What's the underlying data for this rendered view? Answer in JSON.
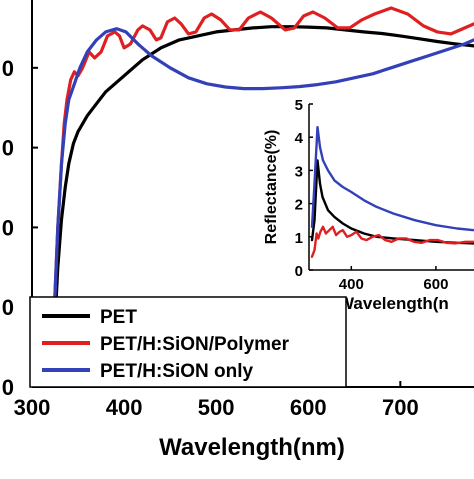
{
  "chart_data": [
    {
      "id": "main",
      "type": "line",
      "xlabel": "Wavelength(nm)",
      "ylabel": "",
      "xlim": [
        300,
        780
      ],
      "ylim": [
        0,
        97
      ],
      "x_ticks": [
        300,
        400,
        500,
        600,
        700
      ],
      "y_ticks": [
        0,
        20,
        40,
        60,
        80,
        100
      ],
      "y_tick_labels": [
        "0",
        "0",
        "0",
        "0",
        "0",
        "0"
      ],
      "legend": {
        "position": "bottom-left"
      },
      "series": [
        {
          "name": "PET",
          "color": "#000000",
          "points": [
            [
              320,
              0
            ],
            [
              324,
              12
            ],
            [
              328,
              30
            ],
            [
              332,
              42
            ],
            [
              336,
              50
            ],
            [
              340,
              56
            ],
            [
              345,
              61
            ],
            [
              350,
              64
            ],
            [
              360,
              68
            ],
            [
              370,
              71
            ],
            [
              380,
              74
            ],
            [
              390,
              76
            ],
            [
              400,
              78
            ],
            [
              420,
              82
            ],
            [
              440,
              85
            ],
            [
              460,
              87
            ],
            [
              480,
              88
            ],
            [
              500,
              89
            ],
            [
              520,
              89.5
            ],
            [
              540,
              90
            ],
            [
              560,
              90.3
            ],
            [
              580,
              90.3
            ],
            [
              600,
              90.2
            ],
            [
              620,
              90
            ],
            [
              640,
              89.5
            ],
            [
              660,
              89
            ],
            [
              680,
              88.6
            ],
            [
              700,
              88
            ],
            [
              720,
              87.3
            ],
            [
              740,
              86.6
            ],
            [
              760,
              86
            ],
            [
              780,
              85.5
            ]
          ]
        },
        {
          "name": "PET/H:SiON/Polymer",
          "color": "#e02020",
          "points": [
            [
              320,
              0
            ],
            [
              324,
              18
            ],
            [
              328,
              40
            ],
            [
              332,
              56
            ],
            [
              335,
              66
            ],
            [
              338,
              72
            ],
            [
              342,
              77
            ],
            [
              346,
              79
            ],
            [
              350,
              78
            ],
            [
              355,
              80
            ],
            [
              362,
              84
            ],
            [
              368,
              82.5
            ],
            [
              375,
              84
            ],
            [
              382,
              88
            ],
            [
              390,
              89
            ],
            [
              395,
              88
            ],
            [
              400,
              85
            ],
            [
              407,
              86
            ],
            [
              415,
              89.5
            ],
            [
              420,
              90.5
            ],
            [
              428,
              89.5
            ],
            [
              435,
              87
            ],
            [
              440,
              87.5
            ],
            [
              447,
              91.5
            ],
            [
              455,
              92.5
            ],
            [
              462,
              91
            ],
            [
              470,
              88.5
            ],
            [
              478,
              89
            ],
            [
              487,
              92.5
            ],
            [
              495,
              93.5
            ],
            [
              505,
              92
            ],
            [
              515,
              89.5
            ],
            [
              525,
              89.5
            ],
            [
              535,
              92.5
            ],
            [
              548,
              94
            ],
            [
              560,
              92.5
            ],
            [
              575,
              89.5
            ],
            [
              585,
              90
            ],
            [
              595,
              93
            ],
            [
              605,
              94
            ],
            [
              618,
              92.5
            ],
            [
              632,
              90
            ],
            [
              645,
              90
            ],
            [
              658,
              92
            ],
            [
              672,
              93.5
            ],
            [
              690,
              95
            ],
            [
              708,
              93.5
            ],
            [
              725,
              90.5
            ],
            [
              740,
              89
            ],
            [
              755,
              88.5
            ],
            [
              770,
              90
            ],
            [
              780,
              91
            ]
          ]
        },
        {
          "name": "PET/H:SiON only",
          "color": "#3340b8",
          "points": [
            [
              320,
              0
            ],
            [
              324,
              18
            ],
            [
              328,
              40
            ],
            [
              332,
              56
            ],
            [
              336,
              66
            ],
            [
              340,
              72
            ],
            [
              346,
              76
            ],
            [
              352,
              80
            ],
            [
              360,
              84
            ],
            [
              370,
              87
            ],
            [
              380,
              89
            ],
            [
              392,
              89.8
            ],
            [
              402,
              89
            ],
            [
              415,
              86
            ],
            [
              430,
              83
            ],
            [
              450,
              80
            ],
            [
              470,
              77.5
            ],
            [
              490,
              76
            ],
            [
              510,
              75.2
            ],
            [
              530,
              74.8
            ],
            [
              550,
              74.8
            ],
            [
              570,
              75
            ],
            [
              590,
              75.3
            ],
            [
              610,
              75.8
            ],
            [
              630,
              76.5
            ],
            [
              650,
              77.5
            ],
            [
              670,
              78.5
            ],
            [
              690,
              80
            ],
            [
              710,
              81.5
            ],
            [
              730,
              83
            ],
            [
              750,
              84.5
            ],
            [
              770,
              86
            ],
            [
              780,
              87
            ]
          ]
        }
      ]
    },
    {
      "id": "inset",
      "type": "line",
      "xlabel": "Wavelength(n",
      "ylabel": "Reflectance(%)",
      "xlim": [
        300,
        690
      ],
      "ylim": [
        0,
        5
      ],
      "x_ticks": [
        400,
        600
      ],
      "y_ticks": [
        0,
        1,
        2,
        3,
        4,
        5
      ],
      "series": [
        {
          "color": "#000000",
          "points": [
            [
              307,
              0.9
            ],
            [
              313,
              1.5
            ],
            [
              320,
              3.3
            ],
            [
              326,
              2.6
            ],
            [
              332,
              2.2
            ],
            [
              345,
              1.8
            ],
            [
              360,
              1.6
            ],
            [
              380,
              1.4
            ],
            [
              400,
              1.25
            ],
            [
              430,
              1.1
            ],
            [
              460,
              1.0
            ],
            [
              500,
              0.95
            ],
            [
              550,
              0.9
            ],
            [
              600,
              0.85
            ],
            [
              650,
              0.82
            ],
            [
              690,
              0.8
            ]
          ]
        },
        {
          "color": "#e02020",
          "points": [
            [
              307,
              0.4
            ],
            [
              313,
              0.6
            ],
            [
              318,
              1.1
            ],
            [
              322,
              0.95
            ],
            [
              327,
              1.15
            ],
            [
              333,
              1.3
            ],
            [
              340,
              1.1
            ],
            [
              348,
              1.2
            ],
            [
              356,
              1.3
            ],
            [
              364,
              1.05
            ],
            [
              372,
              1.15
            ],
            [
              380,
              1.2
            ],
            [
              390,
              1.0
            ],
            [
              400,
              1.05
            ],
            [
              412,
              1.15
            ],
            [
              424,
              0.95
            ],
            [
              436,
              0.9
            ],
            [
              450,
              1.0
            ],
            [
              465,
              1.05
            ],
            [
              480,
              0.9
            ],
            [
              495,
              0.85
            ],
            [
              512,
              0.95
            ],
            [
              530,
              0.95
            ],
            [
              548,
              0.85
            ],
            [
              566,
              0.82
            ],
            [
              585,
              0.9
            ],
            [
              605,
              0.9
            ],
            [
              625,
              0.82
            ],
            [
              645,
              0.8
            ],
            [
              670,
              0.85
            ],
            [
              690,
              0.85
            ]
          ]
        },
        {
          "color": "#3340b8",
          "points": [
            [
              307,
              1.3
            ],
            [
              313,
              2.6
            ],
            [
              320,
              4.3
            ],
            [
              326,
              3.7
            ],
            [
              333,
              3.3
            ],
            [
              345,
              3.0
            ],
            [
              360,
              2.7
            ],
            [
              380,
              2.5
            ],
            [
              400,
              2.35
            ],
            [
              430,
              2.1
            ],
            [
              460,
              1.9
            ],
            [
              500,
              1.7
            ],
            [
              550,
              1.5
            ],
            [
              600,
              1.35
            ],
            [
              650,
              1.25
            ],
            [
              690,
              1.2
            ]
          ]
        }
      ]
    }
  ]
}
